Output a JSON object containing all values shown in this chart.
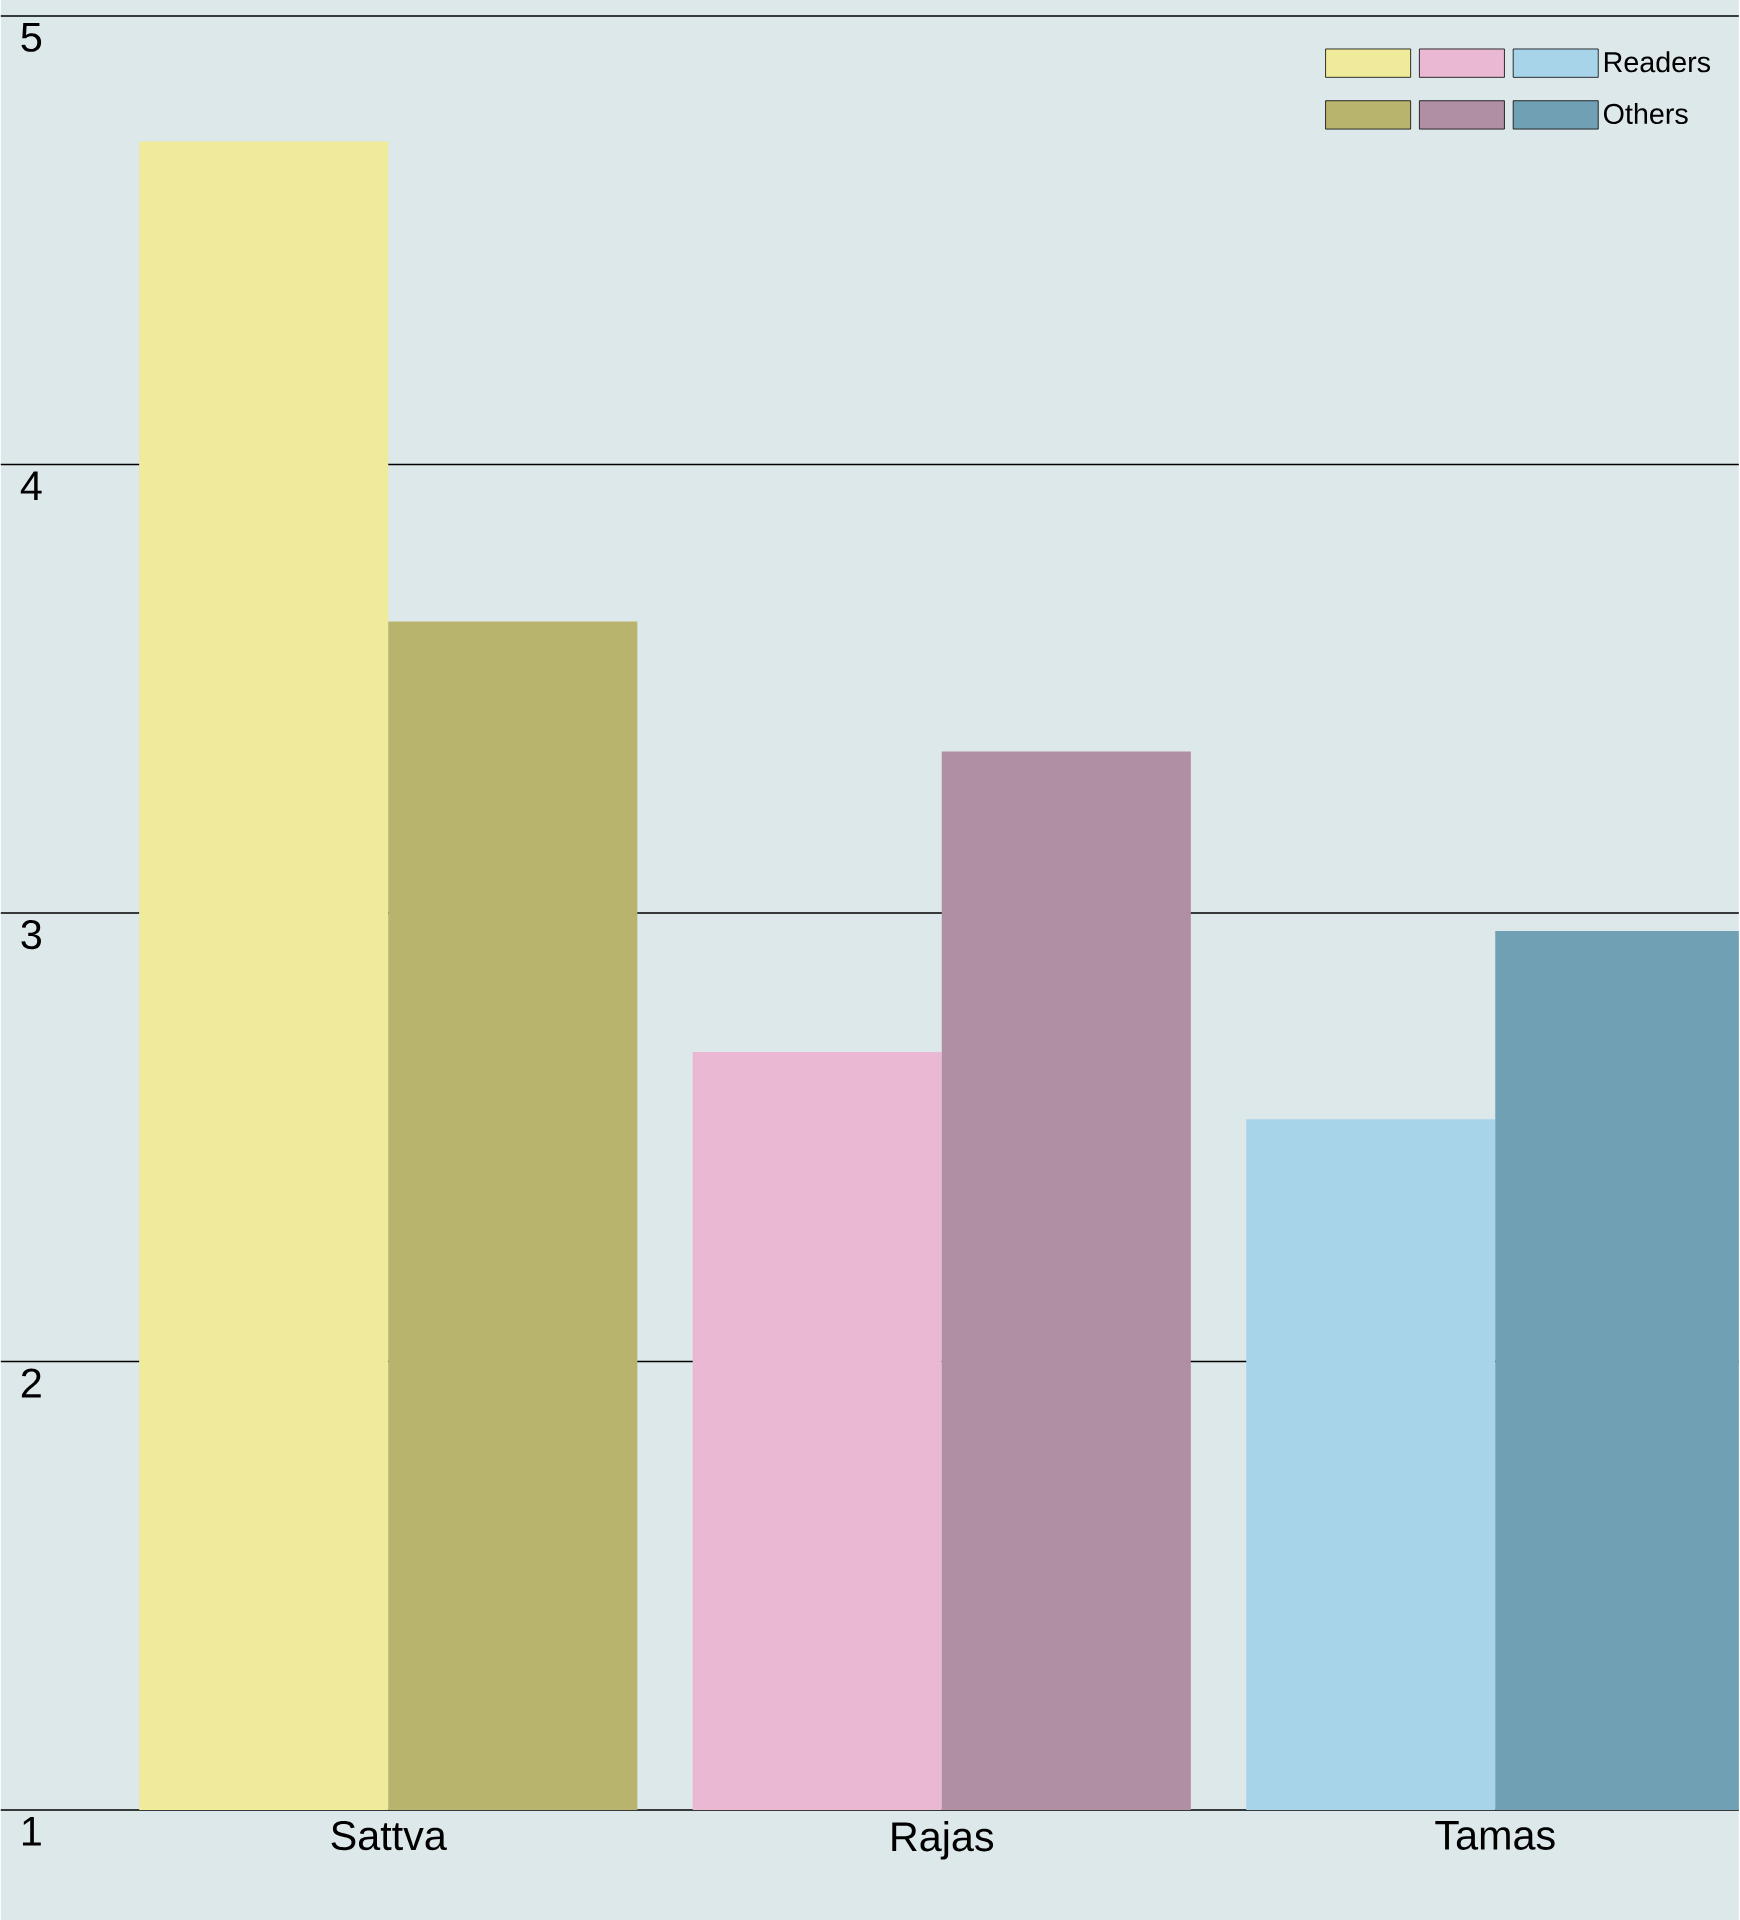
{
  "chart_data": {
    "type": "bar",
    "categories": [
      "Sattva",
      "Rajas",
      "Tamas"
    ],
    "series": [
      {
        "name": "Readers",
        "colors": [
          "#f0eb9a",
          "#eab8d3",
          "#a8d4ea"
        ],
        "values": [
          4.72,
          2.69,
          2.54
        ]
      },
      {
        "name": "Others",
        "colors": [
          "#b8b46e",
          "#b08ea4",
          "#6fa0b4"
        ],
        "values": [
          3.65,
          3.36,
          2.96
        ]
      }
    ],
    "ylim": [
      1,
      5
    ],
    "yticks": [
      1,
      2,
      3,
      4,
      5
    ],
    "grid": "y",
    "legend": "top right"
  }
}
